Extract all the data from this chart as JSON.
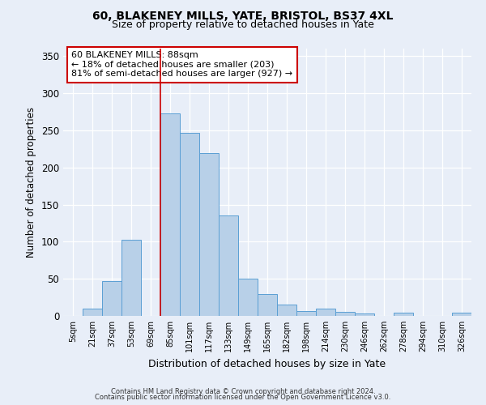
{
  "title": "60, BLAKENEY MILLS, YATE, BRISTOL, BS37 4XL",
  "subtitle": "Size of property relative to detached houses in Yate",
  "xlabel": "Distribution of detached houses by size in Yate",
  "ylabel": "Number of detached properties",
  "footer1": "Contains HM Land Registry data © Crown copyright and database right 2024.",
  "footer2": "Contains public sector information licensed under the Open Government Licence v3.0.",
  "bin_labels": [
    "5sqm",
    "21sqm",
    "37sqm",
    "53sqm",
    "69sqm",
    "85sqm",
    "101sqm",
    "117sqm",
    "133sqm",
    "149sqm",
    "165sqm",
    "182sqm",
    "198sqm",
    "214sqm",
    "230sqm",
    "246sqm",
    "262sqm",
    "278sqm",
    "294sqm",
    "310sqm",
    "326sqm"
  ],
  "bar_values": [
    0,
    10,
    47,
    103,
    0,
    273,
    247,
    219,
    135,
    50,
    30,
    15,
    7,
    10,
    5,
    3,
    0,
    4,
    0,
    0,
    4
  ],
  "bar_color": "#b8d0e8",
  "bar_edge_color": "#5a9fd4",
  "background_color": "#e8eef8",
  "grid_color": "#ffffff",
  "red_line_color": "#cc0000",
  "annotation_text": "60 BLAKENEY MILLS: 88sqm\n← 18% of detached houses are smaller (203)\n81% of semi-detached houses are larger (927) →",
  "annotation_box_color": "#ffffff",
  "annotation_box_edge": "#cc0000",
  "ylim": [
    0,
    360
  ],
  "yticks": [
    0,
    50,
    100,
    150,
    200,
    250,
    300,
    350
  ],
  "red_line_bin_index": 5
}
